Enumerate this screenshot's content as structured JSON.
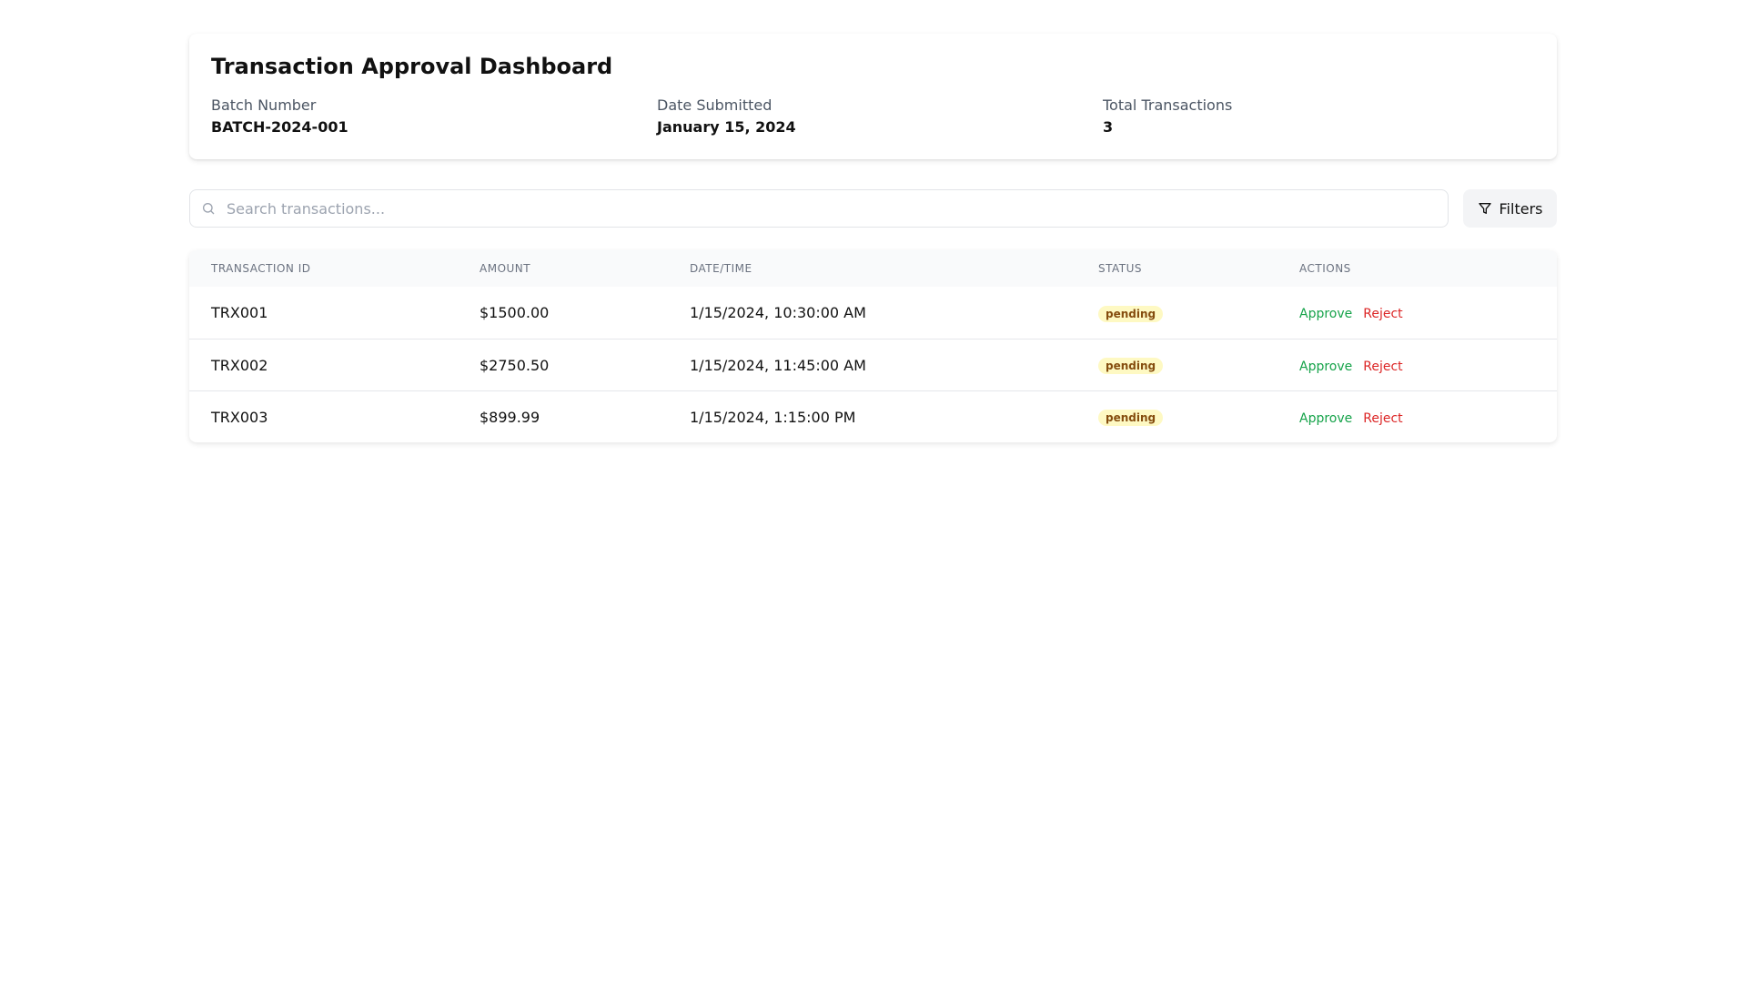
{
  "header": {
    "title": "Transaction Approval Dashboard",
    "fields": [
      {
        "label": "Batch Number",
        "value": "BATCH-2024-001"
      },
      {
        "label": "Date Submitted",
        "value": "January 15, 2024"
      },
      {
        "label": "Total Transactions",
        "value": "3"
      }
    ]
  },
  "toolbar": {
    "search_placeholder": "Search transactions...",
    "search_value": "",
    "filters_label": "Filters"
  },
  "table": {
    "columns": [
      "Transaction ID",
      "Amount",
      "Date/Time",
      "Status",
      "Actions"
    ],
    "rows": [
      {
        "id": "TRX001",
        "amount": "$1500.00",
        "datetime": "1/15/2024, 10:30:00 AM",
        "status": "pending",
        "approve": "Approve",
        "reject": "Reject"
      },
      {
        "id": "TRX002",
        "amount": "$2750.50",
        "datetime": "1/15/2024, 11:45:00 AM",
        "status": "pending",
        "approve": "Approve",
        "reject": "Reject"
      },
      {
        "id": "TRX003",
        "amount": "$899.99",
        "datetime": "1/15/2024, 1:15:00 PM",
        "status": "pending",
        "approve": "Approve",
        "reject": "Reject"
      }
    ]
  },
  "colors": {
    "approve": "#16a34a",
    "reject": "#dc2626",
    "pending_bg": "#fef9c3",
    "pending_text": "#854d0e"
  }
}
